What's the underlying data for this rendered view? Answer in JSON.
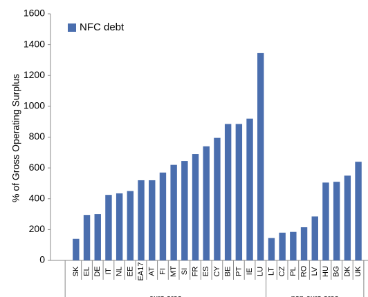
{
  "chart_data": {
    "type": "bar",
    "y_label": "% of Gross Operating Surplus",
    "groups": [
      {
        "name": "euro area",
        "categories": [
          "SK",
          "EL",
          "DE",
          "IT",
          "NL",
          "EE",
          "EA17",
          "AT",
          "FI",
          "MT",
          "SI",
          "FR",
          "ES",
          "CY",
          "BE",
          "PT",
          "IE",
          "LU"
        ]
      },
      {
        "name": "non-euro area",
        "categories": [
          "LT",
          "CZ",
          "PL",
          "RO",
          "LV",
          "HU",
          "BG",
          "DK",
          "UK"
        ]
      }
    ],
    "series": [
      {
        "name": "NFC debt",
        "color": "#4a6eae",
        "values": [
          140,
          295,
          300,
          425,
          435,
          450,
          520,
          520,
          570,
          620,
          645,
          690,
          740,
          795,
          885,
          885,
          920,
          1345,
          145,
          180,
          185,
          215,
          285,
          505,
          510,
          550,
          640
        ]
      }
    ],
    "ylim": [
      0,
      1600
    ],
    "yticks": [
      0,
      200,
      400,
      600,
      800,
      1000,
      1200,
      1400,
      1600
    ],
    "legend": "top-left"
  }
}
